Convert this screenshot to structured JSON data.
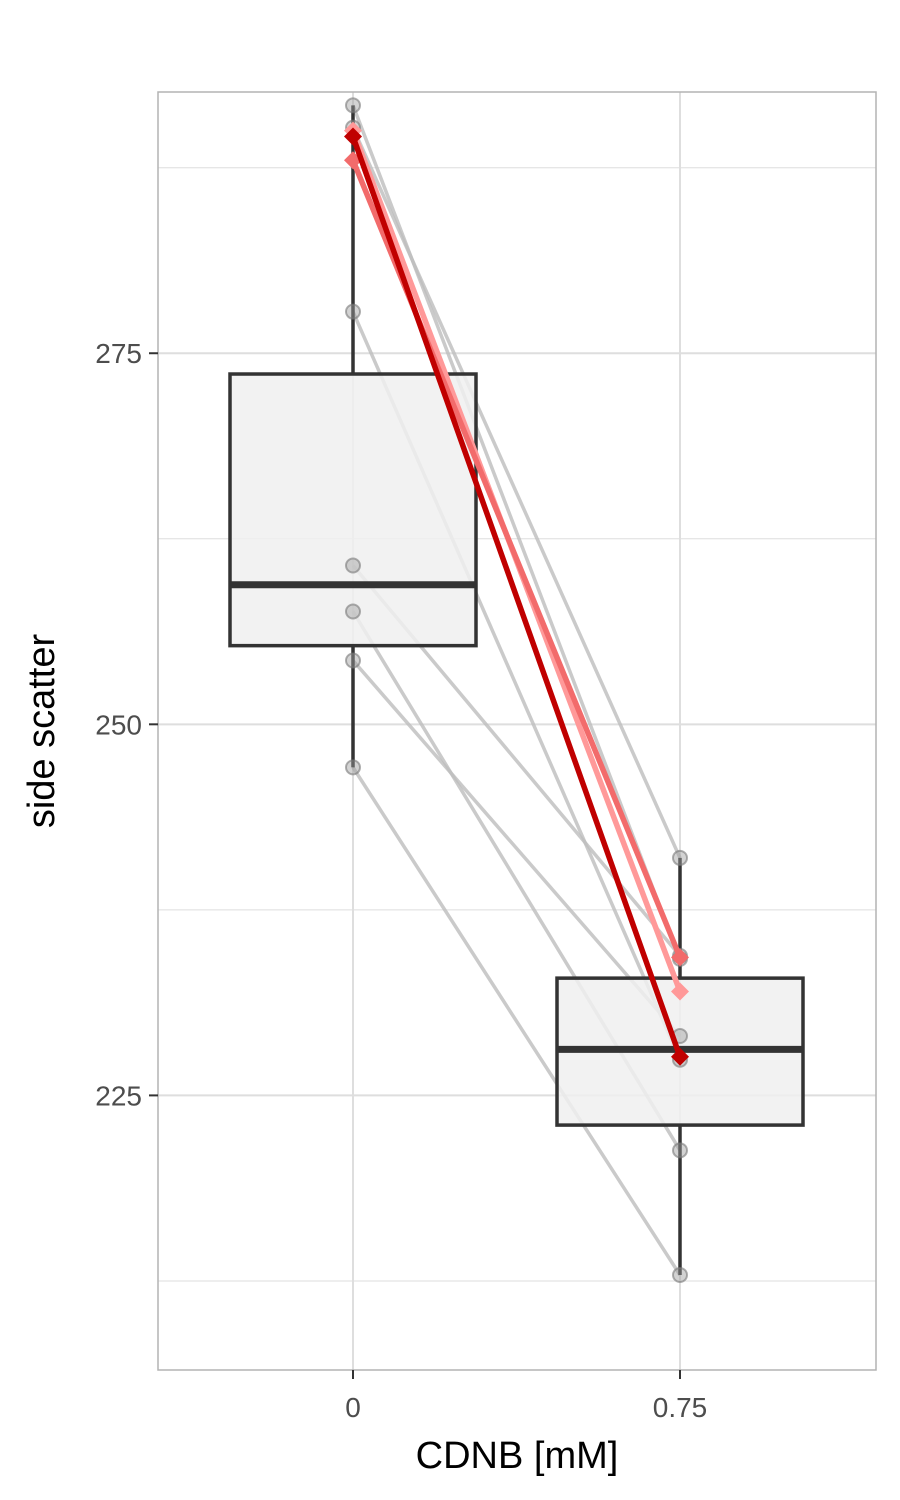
{
  "chart_data": {
    "type": "box",
    "xlabel": "CDNB [mM]",
    "ylabel": "side scatter",
    "categories": [
      "0",
      "0.75"
    ],
    "ylim": [
      206.5,
      292.6
    ],
    "y_ticks": [
      225,
      250,
      275
    ],
    "y_minor_ticks": [
      212.5,
      237.5,
      262.5,
      287.5
    ],
    "grid": true,
    "boxes": [
      {
        "category": "0",
        "lower_whisker": 247.1,
        "q1": 255.3,
        "median": 259.4,
        "q3": 273.6,
        "upper_whisker": 291.7
      },
      {
        "category": "0.75",
        "lower_whisker": 212.9,
        "q1": 223.0,
        "median": 228.1,
        "q3": 232.9,
        "upper_whisker": 241.0
      }
    ],
    "paired_observations": [
      {
        "x0": 291.7,
        "x075": 234.2
      },
      {
        "x0": 277.8,
        "x075": 227.4
      },
      {
        "x0": 260.7,
        "x075": 234.4
      },
      {
        "x0": 257.6,
        "x075": 221.3
      },
      {
        "x0": 254.3,
        "x075": 229.0
      },
      {
        "x0": 247.1,
        "x075": 212.9
      },
      {
        "x0": 290.2,
        "x075": 241.0
      }
    ],
    "highlighted_series": [
      {
        "color": "#ff9999",
        "values": [
          290.0,
          232.0
        ]
      },
      {
        "color": "#f26b6b",
        "values": [
          288.0,
          234.3
        ]
      },
      {
        "color": "#c00000",
        "values": [
          289.6,
          227.6
        ]
      }
    ],
    "colors": {
      "box_fill": "#f0f0f0",
      "box_line": "#333333",
      "grid": "#dedede",
      "panel_border": "#b3b3b3",
      "paired_line": "#bdbdbd",
      "point": "#9e9e9e"
    }
  }
}
